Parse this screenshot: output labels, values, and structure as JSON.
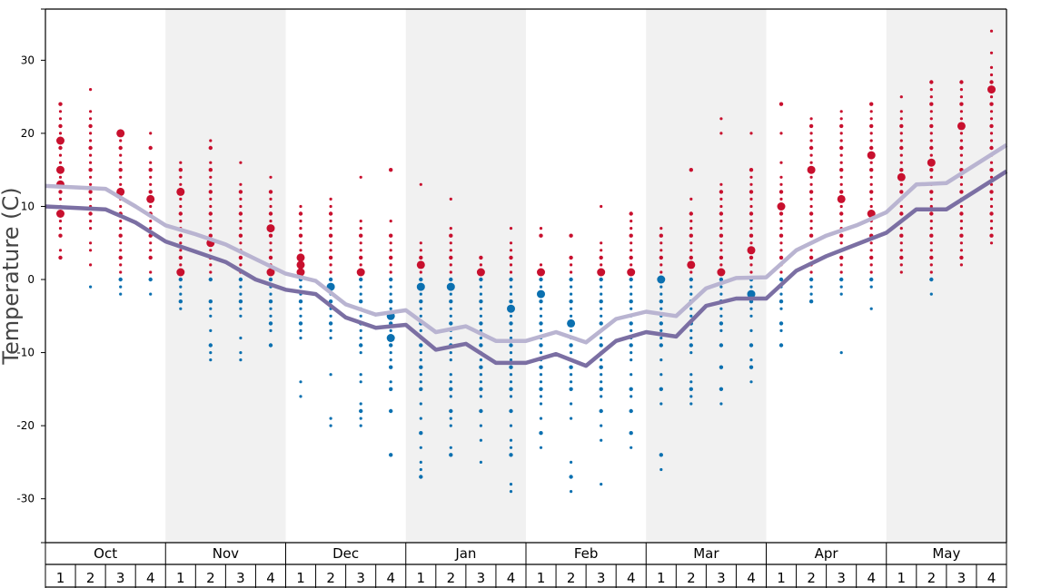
{
  "chart_data": {
    "type": "scatter",
    "ylabel": "Temperature (C)",
    "ylim": [
      -36,
      37
    ],
    "yticks": [
      30,
      20,
      10,
      0,
      -10,
      -20,
      -30
    ],
    "months": [
      "Oct",
      "Nov",
      "Dec",
      "Jan",
      "Feb",
      "Mar",
      "Apr",
      "May"
    ],
    "weeks_label": [
      "1",
      "2",
      "3",
      "4"
    ],
    "colors": {
      "warm": "#c8102e",
      "cold": "#0b70b0",
      "line_light": "#b9b4d1",
      "line_dark": "#7b6fa3",
      "band": "#f1f1f1"
    },
    "series": [
      {
        "values": [
          12.8,
          12.6,
          12.4,
          10.0,
          7.4,
          6.2,
          4.8,
          2.8,
          0.8,
          -0.2,
          -3.4,
          -4.8,
          -4.2,
          -7.2,
          -6.4,
          -8.4,
          -8.4,
          -7.2,
          -8.6,
          -5.4,
          -4.4,
          -5.0,
          -1.2,
          0.2,
          0.3,
          4.0,
          6.0,
          7.4,
          9.2,
          13.0,
          13.2,
          15.8,
          18.4
        ]
      },
      {
        "values": [
          10.0,
          9.8,
          9.6,
          7.8,
          5.2,
          3.8,
          2.4,
          0.0,
          -1.4,
          -2.0,
          -5.2,
          -6.6,
          -6.2,
          -9.6,
          -8.8,
          -11.4,
          -11.4,
          -10.2,
          -11.8,
          -8.4,
          -7.2,
          -7.8,
          -3.6,
          -2.6,
          -2.6,
          1.2,
          3.2,
          4.8,
          6.4,
          9.6,
          9.6,
          12.2,
          14.8
        ]
      }
    ],
    "weekly_points": [
      [
        24,
        23,
        22,
        21,
        20,
        19,
        18,
        17,
        16,
        15,
        14,
        13,
        12,
        11,
        10,
        9,
        8,
        7,
        6,
        4,
        3
      ],
      [
        26,
        23,
        22,
        21,
        20,
        19,
        18,
        17,
        16,
        15,
        14,
        13,
        12,
        11,
        10,
        9,
        8,
        7,
        5,
        4,
        2,
        -1
      ],
      [
        20,
        19,
        18,
        17,
        16,
        15,
        14,
        13,
        12,
        11,
        10,
        9,
        8,
        7,
        6,
        5,
        4,
        3,
        2,
        1,
        0,
        -1,
        -2
      ],
      [
        20,
        18,
        16,
        15,
        14,
        13,
        12,
        11,
        10,
        9,
        8,
        7,
        6,
        5,
        4,
        3,
        1,
        0,
        -2
      ],
      [
        16,
        15,
        14,
        13,
        12,
        11,
        10,
        9,
        8,
        7,
        6,
        5,
        4,
        3,
        2,
        1,
        0,
        -1,
        -2,
        -3,
        -4
      ],
      [
        19,
        18,
        16,
        15,
        14,
        13,
        12,
        11,
        10,
        9,
        8,
        7,
        6,
        5,
        4,
        3,
        2,
        1,
        0,
        -3,
        -4,
        -5,
        -7,
        -9,
        -10,
        -11
      ],
      [
        16,
        13,
        12,
        11,
        10,
        9,
        8,
        7,
        6,
        5,
        4,
        3,
        2,
        1,
        0,
        -1,
        -2,
        -3,
        -4,
        -5,
        -8,
        -10,
        -11
      ],
      [
        14,
        12,
        11,
        10,
        9,
        8,
        7,
        6,
        5,
        4,
        3,
        2,
        1,
        0,
        -1,
        -2,
        -3,
        -4,
        -5,
        -6,
        -7,
        -9
      ],
      [
        10,
        9,
        8,
        7,
        6,
        5,
        4,
        3,
        2,
        1,
        0,
        -1,
        -2,
        -3,
        -4,
        -5,
        -6,
        -7,
        -8,
        -14,
        -16
      ],
      [
        11,
        10,
        9,
        8,
        7,
        6,
        5,
        4,
        3,
        2,
        1,
        0,
        -1,
        -2,
        -3,
        -4,
        -5,
        -6,
        -7,
        -8,
        -13,
        -19,
        -20
      ],
      [
        14,
        8,
        7,
        6,
        5,
        4,
        3,
        2,
        1,
        0,
        -1,
        -2,
        -3,
        -4,
        -5,
        -6,
        -7,
        -8,
        -9,
        -10,
        -13,
        -14,
        -17,
        -18,
        -19,
        -20
      ],
      [
        15,
        8,
        6,
        5,
        4,
        3,
        2,
        1,
        0,
        -1,
        -2,
        -3,
        -4,
        -5,
        -6,
        -7,
        -8,
        -9,
        -10,
        -11,
        -12,
        -14,
        -15,
        -18,
        -24
      ],
      [
        13,
        5,
        4,
        3,
        2,
        1,
        0,
        -1,
        -2,
        -3,
        -4,
        -5,
        -6,
        -7,
        -8,
        -9,
        -10,
        -11,
        -12,
        -13,
        -14,
        -15,
        -17,
        -19,
        -21,
        -23,
        -25,
        -26,
        -27
      ],
      [
        11,
        7,
        6,
        5,
        4,
        3,
        2,
        1,
        0,
        -1,
        -2,
        -3,
        -4,
        -5,
        -6,
        -7,
        -8,
        -9,
        -10,
        -11,
        -13,
        -14,
        -15,
        -16,
        -18,
        -19,
        -20,
        -23,
        -24
      ],
      [
        3,
        2,
        1,
        0,
        -1,
        -2,
        -3,
        -4,
        -5,
        -6,
        -7,
        -8,
        -9,
        -10,
        -11,
        -12,
        -13,
        -14,
        -15,
        -16,
        -18,
        -20,
        -22,
        -25
      ],
      [
        7,
        5,
        4,
        3,
        2,
        1,
        0,
        -1,
        -2,
        -3,
        -4,
        -5,
        -6,
        -7,
        -8,
        -9,
        -10,
        -11,
        -12,
        -13,
        -14,
        -15,
        -16,
        -18,
        -20,
        -22,
        -23,
        -24,
        -28,
        -29
      ],
      [
        7,
        6,
        2,
        1,
        0,
        -1,
        -2,
        -3,
        -4,
        -5,
        -6,
        -7,
        -8,
        -9,
        -10,
        -11,
        -12,
        -13,
        -14,
        -15,
        -16,
        -17,
        -19,
        -21,
        -23
      ],
      [
        6,
        3,
        2,
        1,
        0,
        -1,
        -2,
        -3,
        -4,
        -5,
        -6,
        -7,
        -8,
        -9,
        -10,
        -11,
        -12,
        -13,
        -14,
        -15,
        -17,
        -19,
        -25,
        -27,
        -29
      ],
      [
        10,
        5,
        4,
        3,
        2,
        1,
        0,
        -1,
        -2,
        -3,
        -4,
        -5,
        -6,
        -7,
        -8,
        -9,
        -10,
        -11,
        -12,
        -13,
        -14,
        -15,
        -16,
        -18,
        -20,
        -22,
        -28
      ],
      [
        9,
        8,
        7,
        6,
        5,
        4,
        3,
        2,
        1,
        0,
        -1,
        -2,
        -3,
        -4,
        -5,
        -6,
        -7,
        -8,
        -9,
        -10,
        -11,
        -13,
        -15,
        -16,
        -18,
        -21,
        -23
      ],
      [
        7,
        6,
        5,
        4,
        3,
        2,
        1,
        0,
        -1,
        -2,
        -3,
        -4,
        -5,
        -6,
        -7,
        -8,
        -9,
        -11,
        -13,
        -15,
        -17,
        -24,
        -26
      ],
      [
        15,
        11,
        9,
        8,
        7,
        6,
        5,
        4,
        3,
        2,
        1,
        0,
        -1,
        -2,
        -3,
        -4,
        -5,
        -6,
        -7,
        -8,
        -9,
        -10,
        -13,
        -14,
        -15,
        -16,
        -17
      ],
      [
        22,
        20,
        13,
        12,
        11,
        10,
        9,
        8,
        7,
        6,
        5,
        4,
        3,
        2,
        1,
        0,
        -1,
        -2,
        -3,
        -4,
        -5,
        -6,
        -7,
        -9,
        -12,
        -15,
        -17
      ],
      [
        20,
        15,
        14,
        13,
        12,
        11,
        10,
        9,
        8,
        7,
        6,
        5,
        4,
        3,
        2,
        1,
        0,
        -1,
        -2,
        -3,
        -4,
        -5,
        -7,
        -9,
        -11,
        -12,
        -14
      ],
      [
        24,
        20,
        16,
        14,
        13,
        12,
        11,
        10,
        9,
        8,
        7,
        6,
        5,
        4,
        3,
        2,
        1,
        0,
        -1,
        -2,
        -3,
        -4,
        -6,
        -7,
        -9
      ],
      [
        22,
        21,
        20,
        19,
        18,
        17,
        16,
        15,
        14,
        13,
        12,
        11,
        10,
        9,
        8,
        7,
        6,
        5,
        4,
        3,
        2,
        1,
        0,
        -1,
        -2,
        -3
      ],
      [
        23,
        22,
        21,
        20,
        19,
        18,
        17,
        16,
        15,
        14,
        13,
        12,
        11,
        10,
        9,
        8,
        7,
        6,
        5,
        4,
        3,
        2,
        1,
        0,
        -1,
        -2,
        -10
      ],
      [
        24,
        23,
        22,
        21,
        20,
        19,
        18,
        17,
        16,
        15,
        14,
        13,
        12,
        11,
        10,
        9,
        8,
        7,
        6,
        5,
        4,
        3,
        2,
        1,
        0,
        -1,
        -4
      ],
      [
        25,
        23,
        22,
        21,
        20,
        19,
        18,
        17,
        16,
        15,
        14,
        13,
        12,
        11,
        10,
        9,
        8,
        7,
        6,
        5,
        4,
        3,
        2,
        1
      ],
      [
        27,
        26,
        25,
        24,
        23,
        22,
        21,
        20,
        19,
        18,
        17,
        16,
        15,
        14,
        13,
        12,
        11,
        10,
        9,
        8,
        7,
        6,
        5,
        4,
        3,
        2,
        1,
        0,
        -2
      ],
      [
        27,
        26,
        25,
        24,
        23,
        22,
        21,
        20,
        19,
        18,
        17,
        16,
        15,
        14,
        13,
        12,
        11,
        10,
        9,
        8,
        7,
        6,
        5,
        4,
        3,
        2
      ],
      [
        34,
        31,
        29,
        28,
        27,
        26,
        25,
        24,
        23,
        22,
        21,
        20,
        19,
        18,
        17,
        16,
        15,
        14,
        13,
        12,
        11,
        10,
        9,
        8,
        7,
        6,
        5
      ]
    ],
    "big_points": [
      [
        9,
        13,
        15,
        19
      ],
      [],
      [
        12,
        20
      ],
      [
        11
      ],
      [
        1,
        12
      ],
      [
        5
      ],
      [],
      [
        1,
        7
      ],
      [
        1,
        2,
        3
      ],
      [
        -1
      ],
      [
        1
      ],
      [
        -5,
        -8
      ],
      [
        -1,
        2
      ],
      [
        -1
      ],
      [
        1
      ],
      [
        -4
      ],
      [
        -2,
        1
      ],
      [
        -6
      ],
      [
        1
      ],
      [
        1
      ],
      [
        0
      ],
      [
        2
      ],
      [
        1
      ],
      [
        -2,
        4
      ],
      [
        10
      ],
      [
        15
      ],
      [
        11
      ],
      [
        9,
        17
      ],
      [
        14
      ],
      [
        16
      ],
      [
        21
      ],
      [
        26
      ]
    ]
  }
}
